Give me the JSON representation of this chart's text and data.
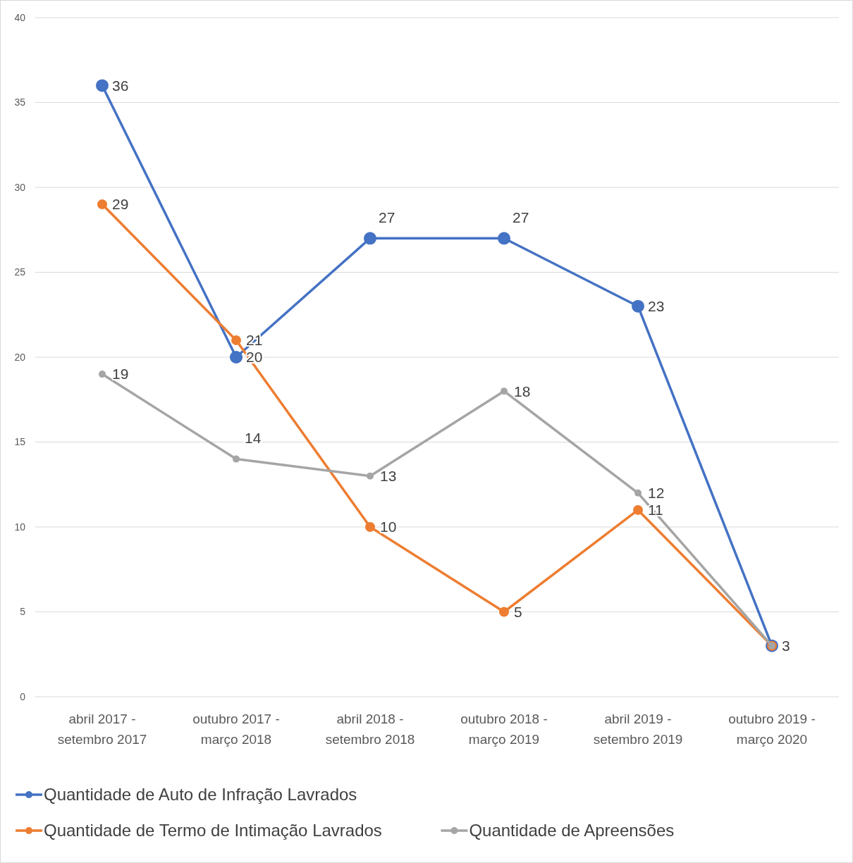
{
  "chart_data": {
    "type": "line",
    "categories": [
      "abril 2017 - setembro 2017",
      "outubro 2017 - março 2018",
      "abril 2018 - setembro 2018",
      "outubro 2018 - março 2019",
      "abril 2019 - setembro 2019",
      "outubro 2019 - março 2020"
    ],
    "series": [
      {
        "name": "Quantidade de Auto de Infração Lavrados",
        "color": "#4472c4",
        "values": [
          36,
          20,
          27,
          27,
          23,
          3
        ],
        "value_labels": [
          "36",
          "20",
          "27",
          "27",
          "23",
          null
        ]
      },
      {
        "name": "Quantidade de Termo de Intimação Lavrados",
        "color": "#ed7d31",
        "values": [
          29,
          21,
          10,
          5,
          11,
          3
        ],
        "value_labels": [
          "29",
          "21",
          "10",
          "5",
          "11",
          null
        ]
      },
      {
        "name": "Quantidade de Apreensões",
        "color": "#a5a5a5",
        "values": [
          19,
          14,
          13,
          18,
          12,
          3
        ],
        "value_labels": [
          "19",
          "14",
          "13",
          "18",
          "12",
          "3"
        ]
      }
    ],
    "ylim": [
      0,
      40
    ],
    "yticks": [
      0,
      5,
      10,
      15,
      20,
      25,
      30,
      35,
      40
    ],
    "grid": "y",
    "legend": "bottom",
    "marker": "circle",
    "line_style": "solid"
  }
}
